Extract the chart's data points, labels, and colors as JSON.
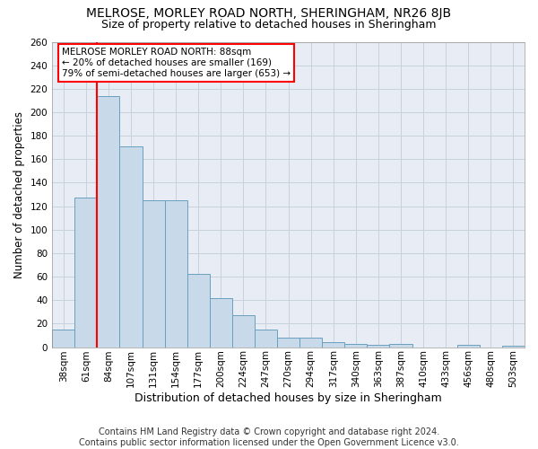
{
  "title": "MELROSE, MORLEY ROAD NORTH, SHERINGHAM, NR26 8JB",
  "subtitle": "Size of property relative to detached houses in Sheringham",
  "xlabel": "Distribution of detached houses by size in Sheringham",
  "ylabel": "Number of detached properties",
  "categories": [
    "38sqm",
    "61sqm",
    "84sqm",
    "107sqm",
    "131sqm",
    "154sqm",
    "177sqm",
    "200sqm",
    "224sqm",
    "247sqm",
    "270sqm",
    "294sqm",
    "317sqm",
    "340sqm",
    "363sqm",
    "387sqm",
    "410sqm",
    "433sqm",
    "456sqm",
    "480sqm",
    "503sqm"
  ],
  "bar_heights": [
    15,
    127,
    214,
    171,
    125,
    125,
    62,
    42,
    27,
    15,
    8,
    8,
    4,
    3,
    2,
    3,
    0,
    0,
    2,
    0,
    1
  ],
  "bar_color": "#c8d9ea",
  "bar_edge_color": "#6b9fbe",
  "vline_position": 1.5,
  "vline_color": "red",
  "annotation_text": "MELROSE MORLEY ROAD NORTH: 88sqm\n← 20% of detached houses are smaller (169)\n79% of semi-detached houses are larger (653) →",
  "ylim_max": 260,
  "yticks": [
    0,
    20,
    40,
    60,
    80,
    100,
    120,
    140,
    160,
    180,
    200,
    220,
    240,
    260
  ],
  "grid_color": "#c8d2dc",
  "plot_bg_color": "#e8edf5",
  "footer_line1": "Contains HM Land Registry data © Crown copyright and database right 2024.",
  "footer_line2": "Contains public sector information licensed under the Open Government Licence v3.0.",
  "title_fontsize": 10,
  "subtitle_fontsize": 9,
  "xlabel_fontsize": 9,
  "ylabel_fontsize": 8.5,
  "tick_fontsize": 7.5,
  "annotation_fontsize": 7.5,
  "footer_fontsize": 7
}
